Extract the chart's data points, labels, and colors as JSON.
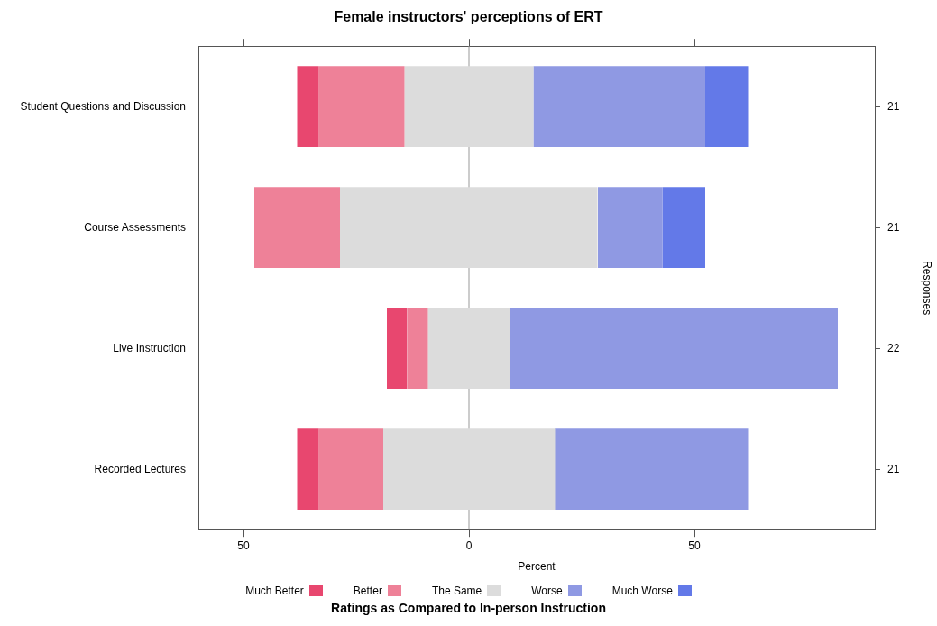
{
  "chart_data": {
    "type": "bar",
    "orientation": "horizontal",
    "title": "Female instructors' perceptions of ERT",
    "xlabel": "Percent",
    "y2label": "Responses",
    "legend_title": "Ratings as Compared to In-person Instruction",
    "legend": "bottom",
    "grid": false,
    "categories": [
      "Student Questions and Discussion",
      "Course Assessments",
      "Live Instruction",
      "Recorded Lectures"
    ],
    "y2_categories": [
      "21",
      "21",
      "22",
      "21"
    ],
    "xlim": [
      -60,
      90
    ],
    "xticks": [
      {
        "value": -50,
        "label": "50"
      },
      0,
      50
    ],
    "tick_labels": "xy",
    "ref_lines": [
      {
        "axis": "x",
        "value": 0,
        "color": "#999999"
      }
    ],
    "series": [
      {
        "name": "Much Better",
        "color": "#e8476f",
        "base": [
          -38.1,
          null,
          -18.2,
          -38.1
        ],
        "values": [
          4.8,
          null,
          4.5,
          4.8
        ]
      },
      {
        "name": "Better",
        "color": "#ee8198",
        "base": [
          -33.3,
          -47.6,
          -13.6,
          -33.3
        ],
        "values": [
          19.0,
          19.0,
          4.5,
          14.3
        ]
      },
      {
        "name": "The Same",
        "color": "#dcdcdc",
        "base": [
          -14.3,
          -28.6,
          -9.1,
          -19.0
        ],
        "values": [
          28.6,
          57.1,
          18.2,
          38.1
        ]
      },
      {
        "name": "Worse",
        "color": "#8f99e3",
        "base": [
          14.3,
          28.6,
          9.1,
          19.0
        ],
        "values": [
          38.1,
          14.3,
          72.7,
          42.9
        ]
      },
      {
        "name": "Much Worse",
        "color": "#6379e8",
        "base": [
          52.4,
          42.9,
          null,
          null
        ],
        "values": [
          9.5,
          9.5,
          null,
          null
        ]
      }
    ]
  }
}
